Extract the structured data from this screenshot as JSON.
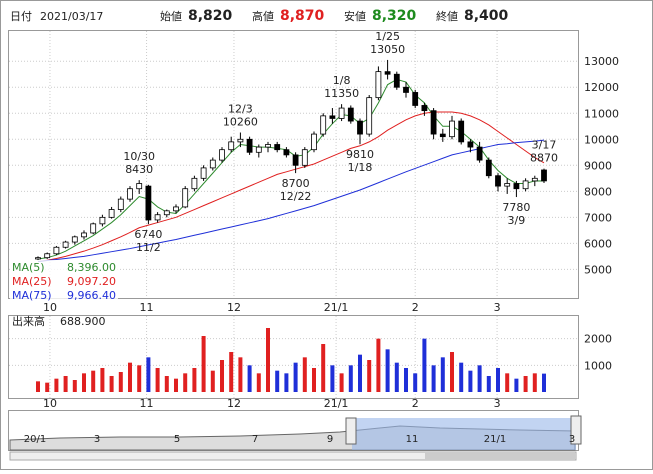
{
  "header": {
    "date_label": "日付",
    "date": "2021/03/17",
    "open_label": "始値",
    "open": "8,820",
    "high_label": "高値",
    "high": "8,870",
    "low_label": "安値",
    "low": "8,320",
    "close_label": "終値",
    "close": "8,400"
  },
  "chart_data": [
    {
      "type": "candlestick",
      "ylim": [
        3900,
        14200
      ],
      "yticks": [
        5000,
        6000,
        7000,
        8000,
        9000,
        10000,
        11000,
        12000,
        13000
      ],
      "xticks": [
        {
          "value": 1.3,
          "label": "10"
        },
        {
          "value": 11.8,
          "label": "11"
        },
        {
          "value": 21.3,
          "label": "12"
        },
        {
          "value": 32.4,
          "label": "21/1"
        },
        {
          "value": 41,
          "label": "2"
        },
        {
          "value": 49.9,
          "label": "3"
        }
      ],
      "up_color": "#ffffff",
      "down_color": "#000000",
      "open": [
        5400,
        5450,
        5600,
        5850,
        6050,
        6250,
        6400,
        6750,
        7000,
        7300,
        7700,
        8100,
        8200,
        6900,
        7100,
        7250,
        7400,
        8100,
        8500,
        8900,
        9200,
        9600,
        9900,
        10000,
        9500,
        9700,
        9800,
        9600,
        9400,
        9000,
        9600,
        10200,
        10900,
        10800,
        11200,
        10700,
        10200,
        11600,
        12600,
        12500,
        12000,
        11800,
        11300,
        11100,
        10200,
        10100,
        10700,
        9900,
        9700,
        9200,
        8600,
        8200,
        8300,
        8100,
        8400,
        8820
      ],
      "high": [
        5500,
        5650,
        5900,
        6100,
        6300,
        6500,
        6800,
        7100,
        7400,
        7800,
        8200,
        8430,
        8250,
        7200,
        7300,
        7500,
        8200,
        8600,
        9000,
        9300,
        9700,
        10100,
        10260,
        10100,
        9800,
        9900,
        9900,
        9700,
        9500,
        9700,
        10300,
        11000,
        11200,
        11350,
        11300,
        10800,
        11700,
        12800,
        13050,
        12600,
        12200,
        11900,
        11400,
        11200,
        10400,
        10900,
        10800,
        10000,
        9900,
        9300,
        8700,
        8500,
        8400,
        8500,
        8600,
        8870
      ],
      "low": [
        5350,
        5400,
        5550,
        5800,
        5950,
        6150,
        6350,
        6650,
        6950,
        7200,
        7600,
        7900,
        6740,
        6800,
        7000,
        7150,
        7350,
        8000,
        8400,
        8800,
        9100,
        9500,
        9700,
        9400,
        9300,
        9500,
        9500,
        9300,
        8700,
        8900,
        9500,
        10100,
        10600,
        10700,
        10600,
        9810,
        10100,
        11500,
        12300,
        11900,
        11600,
        11200,
        10900,
        10000,
        9900,
        10000,
        9800,
        9500,
        9100,
        8500,
        8000,
        7900,
        7780,
        8000,
        8200,
        8320
      ],
      "close": [
        5450,
        5600,
        5850,
        6050,
        6250,
        6400,
        6750,
        7000,
        7300,
        7700,
        8100,
        8300,
        6900,
        7100,
        7250,
        7400,
        8100,
        8500,
        8900,
        9200,
        9600,
        9900,
        10000,
        9500,
        9700,
        9800,
        9600,
        9400,
        9000,
        9600,
        10200,
        10900,
        10800,
        11200,
        10700,
        10200,
        11600,
        12600,
        12500,
        12000,
        11800,
        11300,
        11100,
        10200,
        10100,
        10700,
        9900,
        9700,
        9200,
        8600,
        8200,
        8300,
        8100,
        8400,
        8500,
        8400
      ],
      "series": [
        {
          "name": "MA(5)",
          "value_label": "8,396.00",
          "color": "#2e8b2e",
          "values": [
            5400,
            5450,
            5550,
            5700,
            5900,
            6100,
            6300,
            6550,
            6800,
            7100,
            7450,
            7800,
            7700,
            7400,
            7200,
            7150,
            7500,
            7900,
            8300,
            8700,
            9100,
            9500,
            9800,
            9750,
            9700,
            9700,
            9650,
            9600,
            9350,
            9400,
            9700,
            10200,
            10600,
            10950,
            10900,
            10600,
            10800,
            11400,
            12100,
            12300,
            12200,
            11700,
            11400,
            10900,
            10500,
            10500,
            10300,
            10000,
            9700,
            9200,
            8800,
            8500,
            8300,
            8300,
            8400,
            8396
          ]
        },
        {
          "name": "MA(25)",
          "value_label": "9,097.20",
          "color": "#e02020",
          "values": [
            5300,
            5350,
            5420,
            5500,
            5600,
            5700,
            5820,
            5950,
            6100,
            6250,
            6420,
            6600,
            6700,
            6800,
            6900,
            7000,
            7150,
            7300,
            7450,
            7600,
            7750,
            7900,
            8050,
            8200,
            8350,
            8500,
            8650,
            8750,
            8850,
            8950,
            9050,
            9200,
            9350,
            9500,
            9650,
            9750,
            9900,
            10100,
            10350,
            10550,
            10750,
            10900,
            11000,
            11050,
            11050,
            11050,
            11000,
            10900,
            10750,
            10550,
            10300,
            10050,
            9800,
            9550,
            9300,
            9097.2
          ]
        },
        {
          "name": "MA(75)",
          "value_label": "9,966.40",
          "color": "#1f2fd8",
          "values": [
            5300,
            5340,
            5380,
            5420,
            5460,
            5500,
            5560,
            5620,
            5680,
            5740,
            5800,
            5870,
            5940,
            6010,
            6080,
            6150,
            6230,
            6310,
            6390,
            6470,
            6550,
            6630,
            6710,
            6790,
            6870,
            6950,
            7050,
            7150,
            7250,
            7350,
            7450,
            7570,
            7690,
            7810,
            7930,
            8050,
            8190,
            8330,
            8470,
            8610,
            8750,
            8880,
            9010,
            9140,
            9270,
            9400,
            9480,
            9560,
            9640,
            9720,
            9800,
            9830,
            9870,
            9900,
            9930,
            9966.4
          ]
        }
      ],
      "annotations": [
        {
          "date": "10/30",
          "value": 8430
        },
        {
          "date": "11/2",
          "value": 6740
        },
        {
          "date": "12/3",
          "value": 10260
        },
        {
          "date": "12/22",
          "value": 8700
        },
        {
          "date": "1/8",
          "value": 11350
        },
        {
          "date": "1/18",
          "value": 9810
        },
        {
          "date": "1/25",
          "value": 13050
        },
        {
          "date": "3/9",
          "value": 7780
        },
        {
          "date": "3/17",
          "value": 8870
        }
      ]
    },
    {
      "type": "bar",
      "title": "出来高",
      "value_label": "688.900",
      "up_color": "#e02020",
      "down_color": "#1f2fd8",
      "ylim": [
        0,
        2850
      ],
      "yticks": [
        1000,
        2000
      ],
      "xticks": [
        {
          "value": 1.3,
          "label": "10"
        },
        {
          "value": 11.8,
          "label": "11"
        },
        {
          "value": 21.3,
          "label": "12"
        },
        {
          "value": 32.4,
          "label": "21/1"
        },
        {
          "value": 41,
          "label": "2"
        },
        {
          "value": 49.9,
          "label": "3"
        }
      ],
      "values": [
        400,
        350,
        500,
        600,
        450,
        700,
        800,
        900,
        600,
        750,
        1100,
        1000,
        1300,
        900,
        600,
        500,
        700,
        900,
        2100,
        800,
        1200,
        1500,
        1300,
        1000,
        700,
        2400,
        800,
        700,
        1100,
        1300,
        900,
        1800,
        1000,
        700,
        1000,
        1400,
        1200,
        2000,
        1600,
        1100,
        900,
        700,
        2000,
        1000,
        1300,
        1500,
        1100,
        800,
        1000,
        600,
        900,
        700,
        500,
        600,
        700,
        688.9
      ]
    }
  ],
  "navigator": {
    "labels": [
      "20/1",
      "3",
      "5",
      "7",
      "9",
      "11",
      "21/1",
      "3"
    ]
  }
}
